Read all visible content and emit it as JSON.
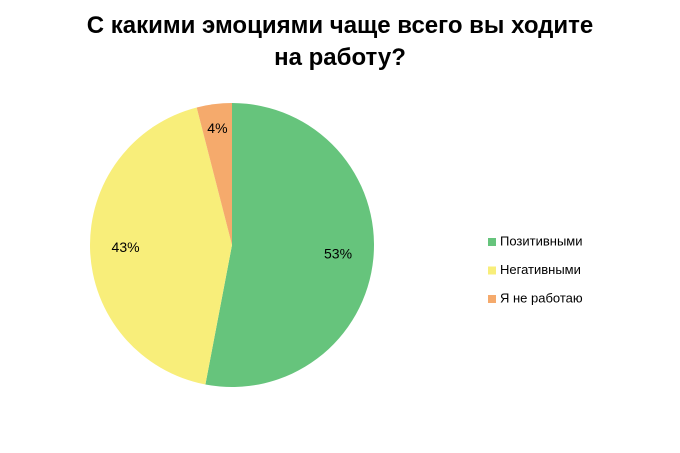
{
  "chart_data": {
    "type": "pie",
    "title": "С какими эмоциями чаще всего вы ходите на работу?",
    "categories": [
      "Позитивными",
      "Негативными",
      "Я не работаю"
    ],
    "values": [
      53,
      43,
      4
    ],
    "value_labels": [
      "53%",
      "43%",
      "4%"
    ],
    "colors": [
      "#66c47c",
      "#f8ee7a",
      "#f5aa6c"
    ],
    "legend": "right"
  }
}
